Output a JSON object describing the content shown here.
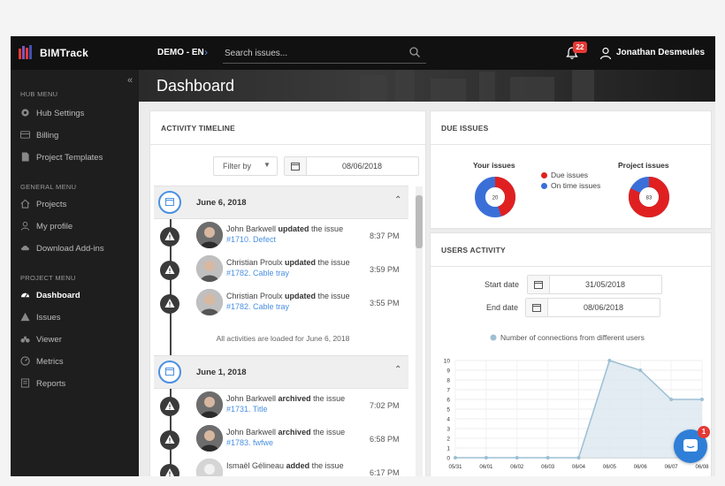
{
  "app": {
    "brand": "BIMTrack"
  },
  "topbar": {
    "project": "DEMO - EN",
    "search_placeholder": "Search issues...",
    "notification_count": "22",
    "user_name": "Jonathan Desmeules"
  },
  "sidebar": {
    "sections": [
      {
        "title": "HUB MENU",
        "items": [
          {
            "label": "Hub Settings",
            "icon": "gear-icon"
          },
          {
            "label": "Billing",
            "icon": "credit-card-icon"
          },
          {
            "label": "Project Templates",
            "icon": "document-icon"
          }
        ]
      },
      {
        "title": "GENERAL MENU",
        "items": [
          {
            "label": "Projects",
            "icon": "home-icon"
          },
          {
            "label": "My profile",
            "icon": "user-icon"
          },
          {
            "label": "Download Add-ins",
            "icon": "cloud-download-icon"
          }
        ]
      },
      {
        "title": "PROJECT MENU",
        "items": [
          {
            "label": "Dashboard",
            "icon": "dashboard-icon",
            "active": true
          },
          {
            "label": "Issues",
            "icon": "warning-icon"
          },
          {
            "label": "Viewer",
            "icon": "binoculars-icon"
          },
          {
            "label": "Metrics",
            "icon": "gauge-icon"
          },
          {
            "label": "Reports",
            "icon": "report-icon"
          }
        ]
      }
    ]
  },
  "page": {
    "title": "Dashboard"
  },
  "activity": {
    "title": "ACTIVITY TIMELINE",
    "filter_label": "Filter by",
    "date": "08/06/2018",
    "days": [
      {
        "date": "June 6, 2018",
        "entries": [
          {
            "user": "John Barkwell",
            "action": "updated",
            "suffix": " the issue",
            "issue": "#1710. Defect",
            "time": "8:37 PM"
          },
          {
            "user": "Christian Proulx",
            "action": "updated",
            "suffix": " the issue",
            "issue": "#1782. Cable tray",
            "time": "3:59 PM"
          },
          {
            "user": "Christian Proulx",
            "action": "updated",
            "suffix": " the issue",
            "issue": "#1782. Cable tray",
            "time": "3:55 PM"
          }
        ],
        "footer": "All activities are loaded for June 6, 2018"
      },
      {
        "date": "June 1, 2018",
        "entries": [
          {
            "user": "John Barkwell",
            "action": "archived",
            "suffix": " the issue",
            "issue": "#1731. Title",
            "time": "7:02 PM"
          },
          {
            "user": "John Barkwell",
            "action": "archived",
            "suffix": " the issue",
            "issue": "#1783. fwfwe",
            "time": "6:58 PM"
          },
          {
            "user": "Ismaël Gélineau",
            "action": "added",
            "suffix": " the issue",
            "issue": "",
            "time": "6:17 PM"
          }
        ]
      }
    ]
  },
  "due_issues": {
    "title": "DUE ISSUES",
    "your_issues_label": "Your issues",
    "your_issues_count": "20",
    "project_issues_label": "Project issues",
    "project_issues_count": "83",
    "legend": [
      {
        "label": "Due issues",
        "color": "#e02020"
      },
      {
        "label": "On time issues",
        "color": "#3b6fd8"
      }
    ],
    "your_issues_due_fraction": 0.45,
    "project_issues_due_fraction": 0.82
  },
  "users_activity": {
    "title": "USERS ACTIVITY",
    "start_label": "Start date",
    "start_value": "31/05/2018",
    "end_label": "End date",
    "end_value": "08/06/2018"
  },
  "chat_badge": "1",
  "chart_data": {
    "type": "area",
    "x": [
      "05/31",
      "06/01",
      "06/02",
      "06/03",
      "06/04",
      "06/05",
      "06/06",
      "06/07",
      "06/08"
    ],
    "series": [
      {
        "name": "Number of connections from different users",
        "values": [
          0,
          0,
          0,
          0,
          0,
          10,
          9,
          6,
          6
        ]
      }
    ],
    "ylim": [
      0,
      10
    ],
    "yticks": [
      "0",
      "1",
      "2",
      "3",
      "4",
      "5",
      "6",
      "7",
      "8",
      "9",
      "10"
    ],
    "color": "#9dbfd3",
    "grid": true,
    "legend": "top"
  }
}
